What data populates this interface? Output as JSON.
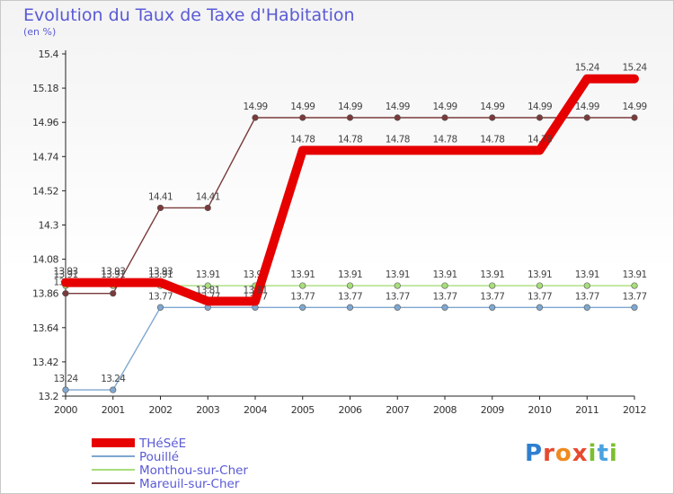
{
  "title": "Evolution du Taux de Taxe d'Habitation",
  "unit": "(en %)",
  "brand": {
    "letters": [
      "P",
      "r",
      "o",
      "x",
      "i",
      "t",
      "i"
    ],
    "colors": [
      "#2f7fd0",
      "#e64a2e",
      "#f08a1e",
      "#e64a2e",
      "#7cbf2e",
      "#4aa3df",
      "#7cbf2e"
    ]
  },
  "chart_data": {
    "type": "line",
    "x": [
      "2000",
      "2001",
      "2002",
      "2003",
      "2004",
      "2005",
      "2006",
      "2007",
      "2008",
      "2009",
      "2010",
      "2011",
      "2012"
    ],
    "ylim": [
      13.2,
      15.4
    ],
    "yticks": [
      "13.2",
      "13.42",
      "13.64",
      "13.86",
      "14.08",
      "14.3",
      "14.52",
      "14.74",
      "14.96",
      "15.18",
      "15.4"
    ],
    "grid": false,
    "legend_position": "bottom-left",
    "series": [
      {
        "name": "THéSéE",
        "color": "#e60000",
        "emphasis": true,
        "values": [
          13.93,
          13.93,
          13.93,
          13.81,
          13.81,
          14.78,
          14.78,
          14.78,
          14.78,
          14.78,
          14.78,
          15.24,
          15.24
        ],
        "labels": [
          "13.93",
          "13.93",
          "13.93",
          "13.81",
          "13.81",
          "14.78",
          "14.78",
          "14.78",
          "14.78",
          "14.78",
          "14.78",
          "15.24",
          "15.24"
        ]
      },
      {
        "name": "Pouillé",
        "color": "#7fa7cf",
        "values": [
          13.24,
          13.24,
          13.77,
          13.77,
          13.77,
          13.77,
          13.77,
          13.77,
          13.77,
          13.77,
          13.77,
          13.77,
          13.77
        ],
        "labels": [
          "13.24",
          "13.24",
          "13.77",
          "13.77",
          "13.77",
          "13.77",
          "13.77",
          "13.77",
          "13.77",
          "13.77",
          "13.77",
          "13.77",
          "13.77"
        ]
      },
      {
        "name": "Monthou-sur-Cher",
        "color": "#a8dd7c",
        "values": [
          13.91,
          13.91,
          13.91,
          13.91,
          13.91,
          13.91,
          13.91,
          13.91,
          13.91,
          13.91,
          13.91,
          13.91,
          13.91
        ],
        "labels": [
          "13.91",
          "13.91",
          "13.91",
          "13.91",
          "13.91",
          "13.91",
          "13.91",
          "13.91",
          "13.91",
          "13.91",
          "13.91",
          "13.91",
          "13.91"
        ]
      },
      {
        "name": "Mareuil-sur-Cher",
        "color": "#7a3a3a",
        "values": [
          13.86,
          13.86,
          14.41,
          14.41,
          14.99,
          14.99,
          14.99,
          14.99,
          14.99,
          14.99,
          14.99,
          14.99,
          14.99
        ],
        "labels": [
          "13.86",
          "13.86",
          "14.41",
          "14.41",
          "14.99",
          "14.99",
          "14.99",
          "14.99",
          "14.99",
          "14.99",
          "14.99",
          "14.99",
          "14.99"
        ]
      }
    ]
  }
}
